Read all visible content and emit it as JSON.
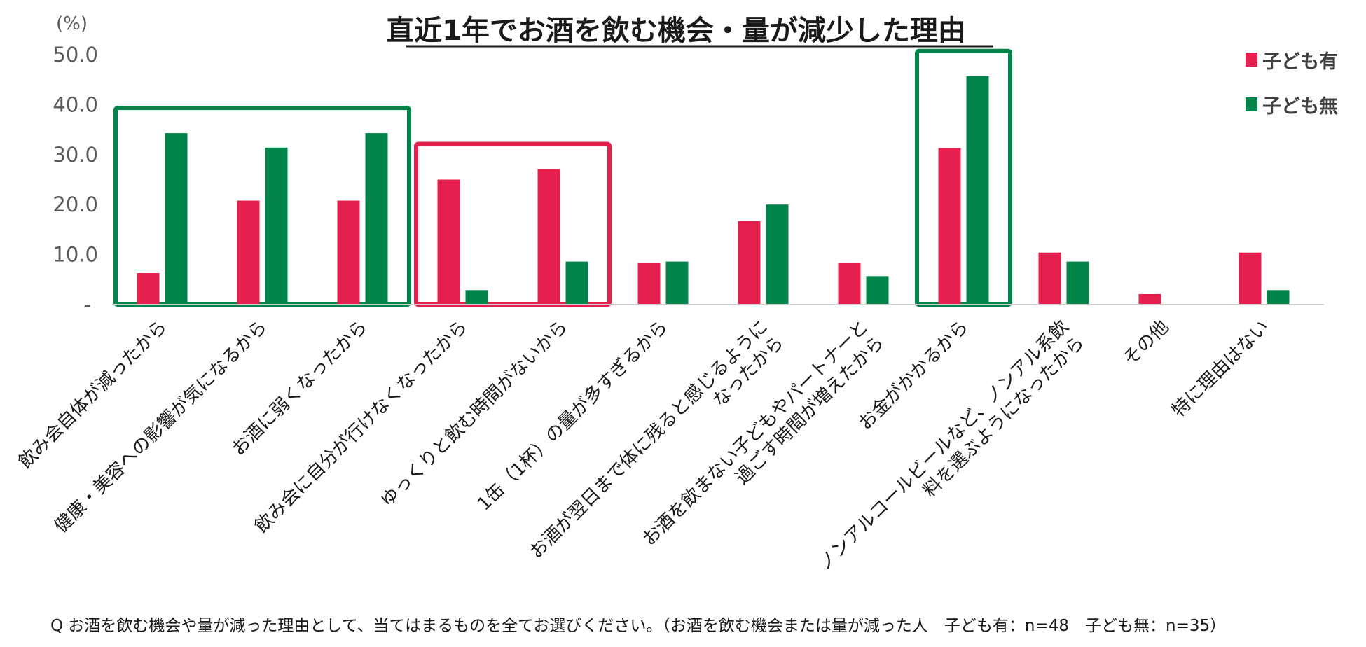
{
  "chart_data": {
    "type": "bar",
    "title": "直近1年でお酒を飲む機会・量が減少した理由",
    "ylabel": "(%)",
    "ylim": [
      0,
      50
    ],
    "yticks": [
      "-",
      "10.0",
      "20.0",
      "30.0",
      "40.0",
      "50.0"
    ],
    "categories": [
      [
        "飲み会自体が減ったから"
      ],
      [
        "健康・美容への影響が気になるから"
      ],
      [
        "お酒に弱くなったから"
      ],
      [
        "飲み会に自分が行けなくなったから"
      ],
      [
        "ゆっくりと飲む時間がないから"
      ],
      [
        "1缶（1杯）の量が多すぎるから"
      ],
      [
        "お酒が翌日まで体に残ると感じるように",
        "なったから"
      ],
      [
        "お酒を飲まない子どもやパートナーと",
        "過ごす時間が増えたから"
      ],
      [
        "お金がかかるから"
      ],
      [
        "ノンアルコールビールなど、ノンアル系飲",
        "料を選ぶようになったから"
      ],
      [
        "その他"
      ],
      [
        "特に理由はない"
      ]
    ],
    "series": [
      {
        "name": "子ども有",
        "color": "#e5204e",
        "values": [
          6.3,
          20.8,
          20.8,
          25.0,
          27.1,
          8.3,
          16.7,
          8.3,
          31.3,
          10.4,
          2.1,
          10.4
        ]
      },
      {
        "name": "子ども無",
        "color": "#00844a",
        "values": [
          34.3,
          31.4,
          34.3,
          2.9,
          8.6,
          8.6,
          20.0,
          5.7,
          45.7,
          8.6,
          0,
          2.9
        ]
      }
    ],
    "legend": "top-right",
    "grid": false,
    "highlights": [
      {
        "categories": [
          0,
          1,
          2
        ],
        "color": "#00844a"
      },
      {
        "categories": [
          3,
          4
        ],
        "color": "#e5204e"
      },
      {
        "categories": [
          8
        ],
        "color": "#00844a"
      }
    ]
  },
  "footnote": "Q お酒を飲む機会や量が減った理由として、当てはまるものを全てお選びください。（お酒を飲む機会または量が減った人　子ども有：n=48　子ども無：n=35）"
}
